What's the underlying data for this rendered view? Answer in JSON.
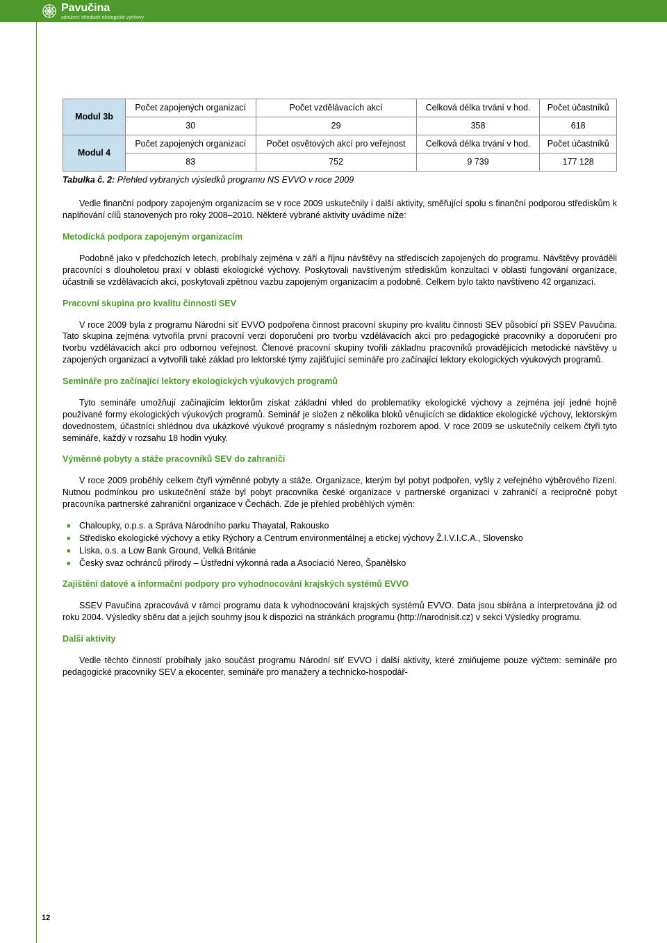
{
  "header": {
    "logo_text": "Pavučina",
    "logo_subtitle": "sdružení středisek ekologické výchovy"
  },
  "table": {
    "rows": [
      {
        "label": "Modul 3b",
        "h": [
          "Počet zapojených organizací",
          "Počet vzdělávacích akcí",
          "Celková délka trvání v hod.",
          "Počet účastníků"
        ],
        "v": [
          "30",
          "29",
          "358",
          "618"
        ]
      },
      {
        "label": "Modul 4",
        "h": [
          "Počet zapojených organizací",
          "Počet osvětových akcí pro veřejnost",
          "Celková délka trvání v hod.",
          "Počet účastníků"
        ],
        "v": [
          "83",
          "752",
          "9 739",
          "177 128"
        ]
      }
    ],
    "caption_bold": "Tabulka č. 2:",
    "caption_rest": " Přehled vybraných výsledků programu NS EVVO v roce 2009"
  },
  "intro_para": "Vedle finanční podpory zapojeným organizacím se v roce 2009 uskutečnily i další aktivity, směřující spolu s finanční podporou střediskům k naplňování cílů stanovených pro roky 2008–2010. Některé vybrané aktivity uvádíme níže:",
  "sections": [
    {
      "heading": "Metodická podpora zapojeným organizacím",
      "paras": [
        "Podobně jako v předchozích letech, probíhaly zejména v září a říjnu návštěvy na střediscích zapojených do programu. Návštěvy prováděli pracovníci s dlouholetou praxí v oblasti ekologické výchovy. Poskytovali navštíveným střediskům konzultaci v oblasti fungování organizace, účastnili se vzdělávacích akcí, poskytovali zpětnou vazbu zapojeným organizacím a podobně. Celkem bylo takto navštíveno 42 organizací."
      ]
    },
    {
      "heading": "Pracovní skupina pro kvalitu činnosti SEV",
      "paras": [
        "V roce 2009 byla z programu Národní síť EVVO podpořena činnost pracovní skupiny pro kvalitu činnosti SEV působící při SSEV Pavučina. Tato skupina zejména vytvořila první pracovní verzi doporučení pro tvorbu vzdělávacích akcí pro pedagogické pracovníky a doporučení pro tvorbu vzdělávacích akcí pro odbornou veřejnost. Členové pracovní skupiny tvořili základnu pracovníků provádějících metodické návštěvy u zapojených organizací a vytvořili také základ pro lektorské týmy zajišťující semináře pro začínající lektory ekologických výukových programů."
      ]
    },
    {
      "heading": "Semináře pro začínající lektory ekologických výukových programů",
      "paras": [
        "Tyto semináře umožňují začínajícím lektorům získat základní vhled do problematiky ekologické výchovy a zejména její jedné hojně používané formy ekologických výukových programů. Seminář je složen z několika bloků věnujících se didaktice ekologické výchovy, lektorským dovednostem, účastníci shlédnou dva ukázkové výukové programy s následným rozborem apod. V roce 2009 se uskutečnily celkem čtyři tyto semináře, každý v rozsahu 18 hodin výuky."
      ]
    },
    {
      "heading": "Výměnné pobyty a stáže pracovníků SEV do zahraničí",
      "paras": [
        "V roce 2009 proběhly celkem čtyři výměnné pobyty a stáže. Organizace, kterým byl pobyt podpořen, vyšly z veřejného výběrového řízení. Nutnou podmínkou pro uskutečnění stáže byl pobyt pracovníka české organizace v partnerské organizaci v zahraničí a recipročně pobyt pracovníka partnerské zahraniční organizace v Čechách. Zde je přehled proběhlých výměn:"
      ],
      "bullets": [
        "Chaloupky, o.p.s. a Správa Národního parku Thayatal, Rakousko",
        "Středisko ekologické výchovy a etiky Rýchory a Centrum environmentálnej a etickej výchovy Ž.I.V.I.C.A., Slovensko",
        "Líska, o.s. a Low Bank Ground, Velká Británie",
        "Český svaz ochránců přírody – Ústřední výkonná rada a Asociació Nereo, Španělsko"
      ]
    },
    {
      "heading": "Zajištění datové a informační podpory pro vyhodnocování krajských systémů EVVO",
      "paras": [
        "SSEV Pavučina zpracovává v rámci programu data k vyhodnocování krajských systémů EVVO. Data jsou sbírána a interpretována již od roku 2004. Výsledky sběru dat a jejich souhrny jsou k dispozici na stránkách programu (http://narodnisit.cz) v sekci Výsledky programu."
      ]
    },
    {
      "heading": "Další aktivity",
      "paras": [
        "Vedle těchto činností probíhaly jako součást programu Národní síť EVVO i další aktivity, které zmiňujeme pouze výčtem: semináře pro pedagogické pracovníky SEV a ekocenter, semináře pro manažery a technicko-hospodář-"
      ]
    }
  ],
  "page_number": "12",
  "colors": {
    "green": "#4c9a2a",
    "table_header_bg": "#c8dff0",
    "border": "#888888",
    "text": "#000000",
    "bg": "#ffffff"
  }
}
